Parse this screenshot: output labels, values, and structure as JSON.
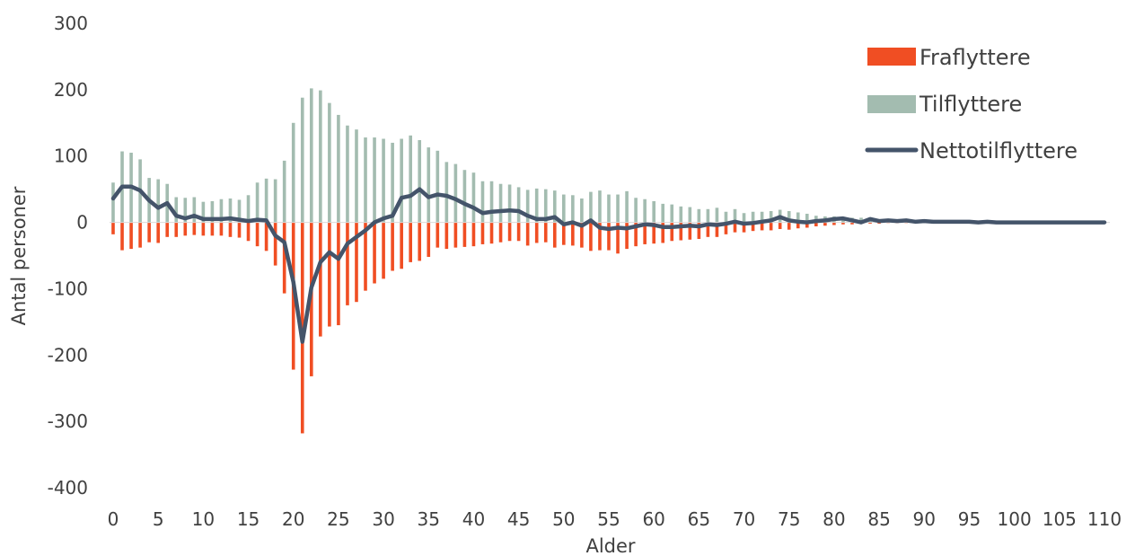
{
  "chart_data": {
    "type": "bar",
    "xlabel": "Alder",
    "ylabel": "Antal personer",
    "ylim": [
      -400,
      300
    ],
    "yticks": [
      300,
      200,
      100,
      0,
      -100,
      -200,
      -300,
      -400
    ],
    "xlim": [
      0,
      110
    ],
    "xticks": [
      0,
      5,
      10,
      15,
      20,
      25,
      30,
      35,
      40,
      45,
      50,
      55,
      60,
      65,
      70,
      75,
      80,
      85,
      90,
      95,
      100,
      105,
      110
    ],
    "grid": false,
    "legend_position": "top-right",
    "series": [
      {
        "name": "Fraflyttere",
        "kind": "bar",
        "color": "#f04e23",
        "values": [
          -18,
          -42,
          -40,
          -38,
          -30,
          -31,
          -22,
          -22,
          -20,
          -19,
          -20,
          -20,
          -20,
          -22,
          -23,
          -28,
          -36,
          -43,
          -65,
          -107,
          -222,
          -318,
          -232,
          -172,
          -157,
          -155,
          -125,
          -120,
          -103,
          -92,
          -85,
          -73,
          -70,
          -60,
          -58,
          -52,
          -38,
          -40,
          -38,
          -37,
          -36,
          -33,
          -32,
          -30,
          -28,
          -28,
          -35,
          -31,
          -30,
          -38,
          -34,
          -35,
          -38,
          -43,
          -42,
          -42,
          -47,
          -40,
          -36,
          -33,
          -32,
          -31,
          -28,
          -27,
          -26,
          -25,
          -22,
          -22,
          -18,
          -15,
          -15,
          -13,
          -12,
          -12,
          -10,
          -11,
          -9,
          -8,
          -6,
          -5,
          -4,
          -3,
          -3,
          -2,
          -2,
          -2,
          -1,
          -1,
          -1,
          -1,
          0,
          0,
          0,
          0,
          0,
          0,
          0,
          0,
          0,
          0,
          0,
          0,
          0,
          0,
          0,
          0,
          0,
          0,
          0,
          0,
          0
        ]
      },
      {
        "name": "Tilflyttere",
        "kind": "bar",
        "color": "#a3bcb0",
        "values": [
          60,
          107,
          105,
          95,
          67,
          65,
          58,
          38,
          37,
          38,
          31,
          32,
          35,
          36,
          34,
          41,
          60,
          66,
          65,
          93,
          150,
          188,
          202,
          199,
          180,
          162,
          146,
          140,
          128,
          128,
          126,
          120,
          126,
          131,
          124,
          113,
          108,
          91,
          88,
          79,
          75,
          62,
          62,
          58,
          57,
          53,
          49,
          51,
          50,
          48,
          42,
          41,
          36,
          46,
          48,
          42,
          42,
          47,
          37,
          35,
          32,
          28,
          27,
          24,
          23,
          20,
          20,
          22,
          16,
          20,
          14,
          16,
          16,
          17,
          19,
          17,
          15,
          13,
          10,
          9,
          9,
          8,
          7,
          7,
          5,
          4,
          4,
          3,
          3,
          2,
          2,
          2,
          2,
          1,
          1,
          1,
          1,
          1,
          1,
          1,
          1,
          1,
          0,
          0,
          0,
          0,
          0,
          0,
          0,
          0,
          0
        ]
      },
      {
        "name": "Nettotilflyttere",
        "kind": "line",
        "color": "#44546a",
        "values": [
          36,
          54,
          54,
          48,
          33,
          22,
          29,
          10,
          6,
          10,
          5,
          5,
          5,
          6,
          4,
          2,
          4,
          3,
          -20,
          -30,
          -90,
          -180,
          -98,
          -60,
          -45,
          -55,
          -32,
          -22,
          -12,
          0,
          6,
          10,
          37,
          40,
          50,
          38,
          42,
          40,
          35,
          28,
          22,
          14,
          16,
          17,
          18,
          17,
          10,
          5,
          5,
          8,
          -3,
          0,
          -5,
          3,
          -8,
          -10,
          -8,
          -9,
          -6,
          -3,
          -4,
          -7,
          -7,
          -6,
          -5,
          -6,
          -3,
          -4,
          -2,
          1,
          -2,
          -1,
          1,
          3,
          8,
          3,
          1,
          0,
          2,
          3,
          5,
          6,
          3,
          0,
          5,
          2,
          3,
          2,
          3,
          1,
          2,
          1,
          1,
          1,
          1,
          1,
          0,
          1,
          0,
          0,
          0,
          0,
          0,
          0,
          0,
          0,
          0,
          0,
          0,
          0,
          0
        ]
      }
    ]
  }
}
